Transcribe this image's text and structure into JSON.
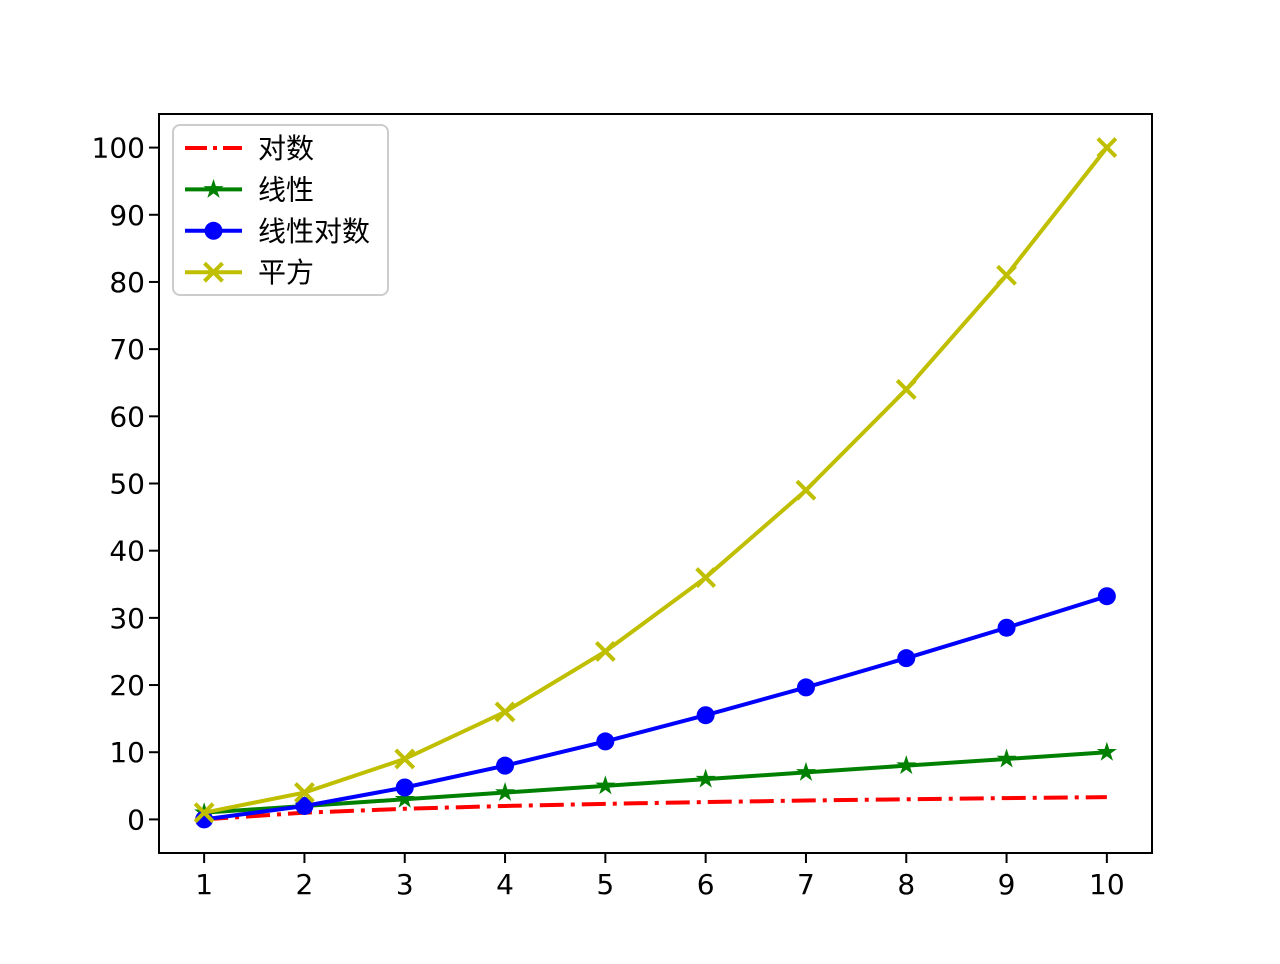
{
  "chart_data": {
    "type": "line",
    "title": "",
    "xlabel": "",
    "ylabel": "",
    "x": [
      1,
      2,
      3,
      4,
      5,
      6,
      7,
      8,
      9,
      10
    ],
    "xticks": [
      "1",
      "2",
      "3",
      "4",
      "5",
      "6",
      "7",
      "8",
      "9",
      "10"
    ],
    "yticks": [
      "0",
      "10",
      "20",
      "30",
      "40",
      "50",
      "60",
      "70",
      "80",
      "90",
      "100"
    ],
    "xlim": [
      0.55,
      10.45
    ],
    "ylim": [
      -5,
      105
    ],
    "grid": false,
    "background": "#ffffff",
    "axis_color": "#000000",
    "legend": {
      "position": "upper-left",
      "border_color": "#cccccc",
      "background": "rgba(255,255,255,0.8)"
    },
    "series": [
      {
        "key": "log",
        "name": "对数",
        "color": "#ff0000",
        "linestyle": "dashdot",
        "marker": "none",
        "values": [
          0,
          1,
          1.58,
          2,
          2.32,
          2.58,
          2.81,
          3,
          3.17,
          3.32
        ]
      },
      {
        "key": "linear",
        "name": "线性",
        "color": "#008000",
        "linestyle": "solid",
        "marker": "star",
        "values": [
          1,
          2,
          3,
          4,
          5,
          6,
          7,
          8,
          9,
          10
        ]
      },
      {
        "key": "linearithmic",
        "name": "线性对数",
        "color": "#0000ff",
        "linestyle": "solid",
        "marker": "circle",
        "values": [
          0,
          2,
          4.75,
          8,
          11.61,
          15.51,
          19.65,
          24,
          28.53,
          33.22
        ]
      },
      {
        "key": "quadratic",
        "name": "平方",
        "color": "#bfbf00",
        "linestyle": "solid",
        "marker": "x",
        "values": [
          1,
          4,
          9,
          16,
          25,
          36,
          49,
          64,
          81,
          100
        ]
      }
    ]
  }
}
